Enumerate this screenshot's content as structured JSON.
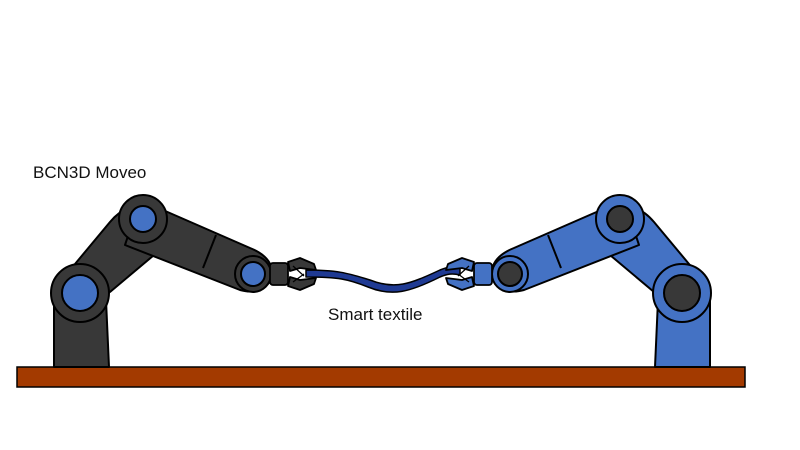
{
  "labels": {
    "robot_name": "BCN3D Moveo",
    "textile": "Smart textile"
  },
  "colors": {
    "left_robot_body": "#383838",
    "left_robot_joint": "#4472c4",
    "right_robot_body": "#4472c4",
    "right_robot_joint": "#383838",
    "outline": "#000000",
    "table": "#a33a00",
    "textile": "#1f3a93"
  },
  "icons": {
    "left_robot": "robot-arm-icon",
    "right_robot": "robot-arm-icon",
    "textile": "fabric-strip-icon",
    "table": "table-surface-icon"
  }
}
